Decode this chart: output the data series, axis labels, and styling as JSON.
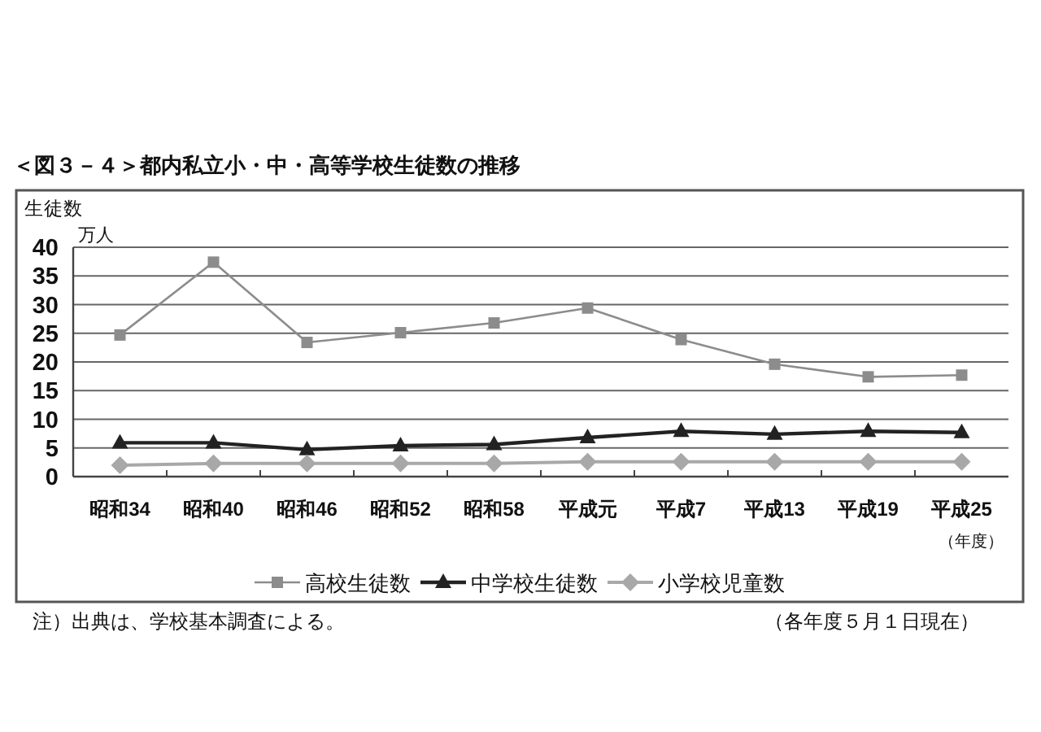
{
  "chart_data": {
    "type": "line",
    "title": "＜図３－４＞都内私立小・中・高等学校生徒数の推移",
    "ylabel": "生徒数",
    "xlabel": "（年度）",
    "annotations": [
      "万人",
      "注）出典は、学校基本調査による。",
      "（各年度５月１日現在）"
    ],
    "categories": [
      "昭和34",
      "昭和40",
      "昭和46",
      "昭和52",
      "昭和58",
      "平成元",
      "平成7",
      "平成13",
      "平成19",
      "平成25"
    ],
    "series": [
      {
        "name": "高校生徒数",
        "color": "#8c8c8c",
        "marker": "square",
        "values": [
          24.7,
          37.4,
          23.4,
          25.1,
          26.8,
          29.4,
          23.9,
          19.6,
          17.4,
          17.7
        ]
      },
      {
        "name": "中学校生徒数",
        "color": "#222222",
        "marker": "triangle",
        "values": [
          5.9,
          5.9,
          4.7,
          5.4,
          5.6,
          6.8,
          7.9,
          7.4,
          7.9,
          7.7
        ]
      },
      {
        "name": "小学校児童数",
        "color": "#a8a8a8",
        "marker": "diamond",
        "values": [
          2.0,
          2.3,
          2.3,
          2.3,
          2.3,
          2.6,
          2.6,
          2.6,
          2.6,
          2.6
        ]
      }
    ],
    "ylim": [
      0,
      40
    ],
    "yticks": [
      0,
      5,
      10,
      15,
      20,
      25,
      30,
      35,
      40
    ],
    "grid": "y",
    "legend": "bottom"
  }
}
